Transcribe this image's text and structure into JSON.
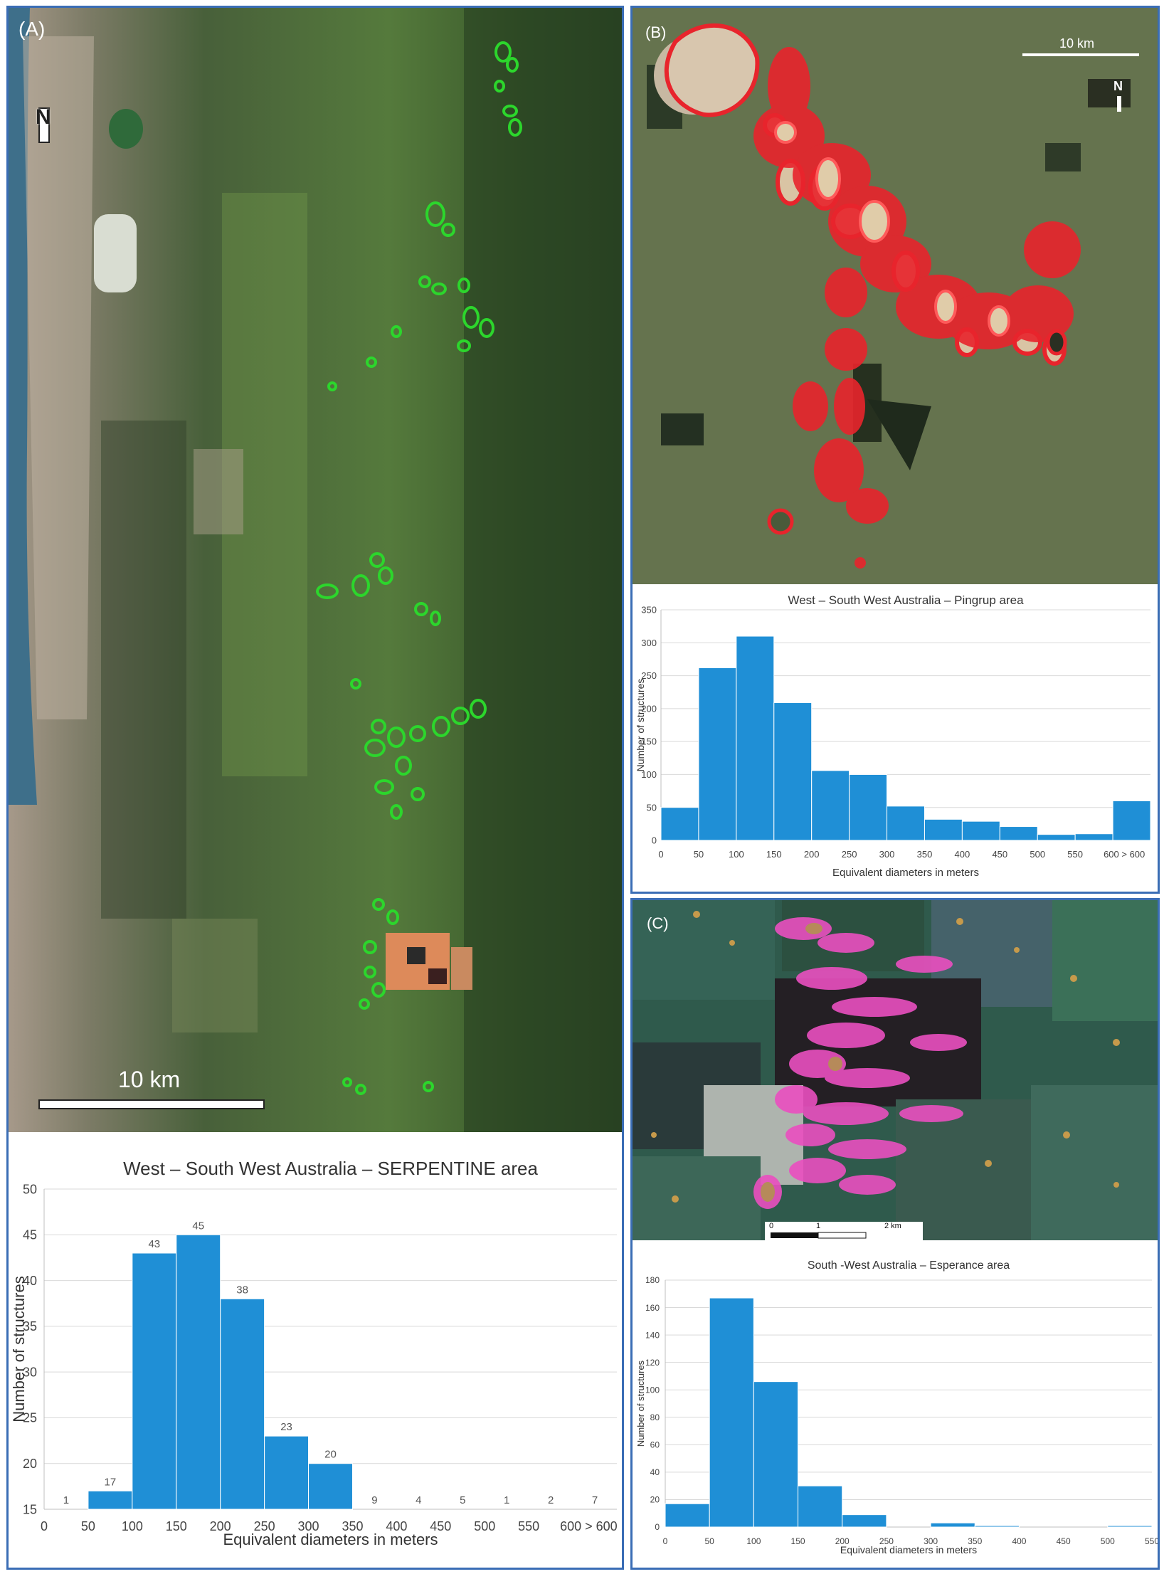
{
  "panels": {
    "a": {
      "label": "(A)",
      "north": "N",
      "scale_text": "10 km",
      "marker_color": "#2cd62c"
    },
    "b": {
      "label": "(B)",
      "north": "N",
      "scale_text": "10 km",
      "marker_color": "#e8242c"
    },
    "c": {
      "label": "(C)",
      "scale_ticks": [
        "0",
        "1",
        "2 km"
      ],
      "marker_color": "#ea4fc0"
    }
  },
  "chart_data": [
    {
      "id": "serpentine",
      "type": "bar",
      "title": "West – South West Australia – SERPENTINE area",
      "xlabel": "Equivalent diameters in meters",
      "ylabel": "Number of structures",
      "categories": [
        "0-50",
        "50-100",
        "100-150",
        "150-200",
        "200-250",
        "250-300",
        "300-350",
        "350-400",
        "400-450",
        "450-500",
        "500-550",
        "550-600",
        "> 600"
      ],
      "values": [
        1,
        17,
        43,
        45,
        38,
        23,
        20,
        9,
        4,
        5,
        1,
        2,
        7
      ],
      "data_labels": [
        "1",
        "17",
        "43",
        "45",
        "38",
        "23",
        "20",
        "9",
        "4",
        "5",
        "1",
        "2",
        "7"
      ],
      "x_ticks": [
        "0",
        "50",
        "100",
        "150",
        "200",
        "250",
        "300",
        "350",
        "400",
        "450",
        "500",
        "550",
        "600 > 600"
      ],
      "y_ticks": [
        "15",
        "20",
        "25",
        "30",
        "35",
        "40",
        "45",
        "50"
      ],
      "ylim": [
        15,
        50
      ],
      "bar_color": "#1f8fd6",
      "grid": true
    },
    {
      "id": "pingrup",
      "type": "bar",
      "title": "West – South West Australia – Pingrup area",
      "xlabel": "Equivalent diameters in meters",
      "ylabel": "Number of structures",
      "categories": [
        "0-50",
        "50-100",
        "100-150",
        "150-200",
        "200-250",
        "250-300",
        "300-350",
        "350-400",
        "400-450",
        "450-500",
        "500-550",
        "550-600",
        "> 600"
      ],
      "values": [
        50,
        262,
        310,
        209,
        106,
        100,
        52,
        32,
        29,
        21,
        9,
        10,
        60
      ],
      "x_ticks": [
        "0",
        "50",
        "100",
        "150",
        "200",
        "250",
        "300",
        "350",
        "400",
        "450",
        "500",
        "550",
        "600 > 600"
      ],
      "y_ticks": [
        "0",
        "50",
        "100",
        "150",
        "200",
        "250",
        "300",
        "350"
      ],
      "ylim": [
        0,
        350
      ],
      "bar_color": "#1f8fd6",
      "grid": true
    },
    {
      "id": "esperance",
      "type": "bar",
      "title": "South -West Australia – Esperance area",
      "xlabel": "Equivalent diameters in meters",
      "ylabel": "Number of structures",
      "categories": [
        "0-50",
        "50-100",
        "100-150",
        "150-200",
        "200-250",
        "250-300",
        "300-350",
        "350-400",
        "400-450",
        "450-500",
        "500-550"
      ],
      "values": [
        17,
        167,
        106,
        30,
        9,
        0,
        3,
        1,
        0,
        0,
        1
      ],
      "x_ticks": [
        "0",
        "50",
        "100",
        "150",
        "200",
        "250",
        "300",
        "350",
        "400",
        "450",
        "500",
        "550"
      ],
      "y_ticks": [
        "0",
        "20",
        "40",
        "60",
        "80",
        "100",
        "120",
        "140",
        "160",
        "180"
      ],
      "ylim": [
        0,
        180
      ],
      "bar_color": "#1f8fd6",
      "grid": true
    }
  ]
}
